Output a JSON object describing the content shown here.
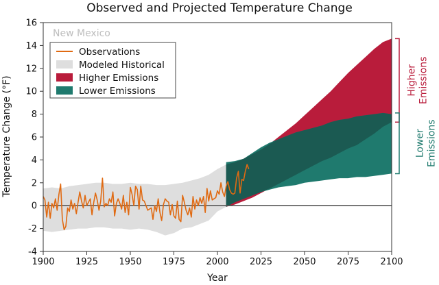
{
  "colors": {
    "observations": "#e06a12",
    "modeled_historical": "#dedede",
    "higher": "#b91c3b",
    "lower": "#1f7a6e",
    "overlap": "#1b5a52",
    "zero_line": "#555555"
  },
  "chart_data": {
    "type": "area",
    "title": "Observed and Projected Temperature Change",
    "region_label": "New Mexico",
    "xlabel": "Year",
    "ylabel": "Temperature Change (°F)",
    "xlim": [
      1900,
      2100
    ],
    "ylim": [
      -4,
      16
    ],
    "xticks": [
      1900,
      1925,
      1950,
      1975,
      2000,
      2025,
      2050,
      2075,
      2100
    ],
    "yticks": [
      -4,
      -2,
      0,
      2,
      4,
      6,
      8,
      10,
      12,
      14,
      16
    ],
    "legend": {
      "position": "top-left",
      "entries": [
        {
          "label": "Observations",
          "kind": "line",
          "color": "#e06a12"
        },
        {
          "label": "Modeled Historical",
          "kind": "patch",
          "color": "#dedede"
        },
        {
          "label": "Higher Emissions",
          "kind": "patch",
          "color": "#b91c3b"
        },
        {
          "label": "Lower Emissions",
          "kind": "patch",
          "color": "#1f7a6e"
        }
      ]
    },
    "bracket_labels": {
      "higher": [
        "Higher",
        "Emissions"
      ],
      "lower": [
        "Lower",
        "Emissions"
      ]
    },
    "modeled_historical": {
      "x": [
        1900,
        1905,
        1910,
        1915,
        1920,
        1925,
        1930,
        1935,
        1940,
        1945,
        1950,
        1955,
        1960,
        1965,
        1970,
        1975,
        1980,
        1985,
        1990,
        1995,
        2000,
        2005
      ],
      "upper": [
        1.5,
        1.6,
        1.5,
        1.7,
        1.8,
        1.9,
        2.0,
        2.0,
        1.9,
        1.9,
        2.0,
        1.9,
        1.9,
        1.8,
        1.8,
        1.9,
        2.0,
        2.2,
        2.4,
        2.7,
        3.2,
        3.6
      ],
      "lower": [
        -2.2,
        -2.3,
        -2.2,
        -2.1,
        -2.0,
        -2.0,
        -1.9,
        -1.9,
        -2.0,
        -2.0,
        -2.1,
        -2.0,
        -2.1,
        -2.3,
        -2.6,
        -2.4,
        -2.0,
        -1.9,
        -1.6,
        -1.3,
        -0.5,
        -0.1
      ]
    },
    "higher_emissions": {
      "x": [
        2005,
        2010,
        2015,
        2020,
        2025,
        2030,
        2035,
        2040,
        2045,
        2050,
        2055,
        2060,
        2065,
        2070,
        2075,
        2080,
        2085,
        2090,
        2095,
        2100
      ],
      "upper": [
        3.6,
        3.8,
        4.1,
        4.5,
        4.9,
        5.4,
        6.0,
        6.6,
        7.2,
        7.9,
        8.6,
        9.3,
        10.0,
        10.8,
        11.6,
        12.3,
        13.0,
        13.7,
        14.3,
        14.6
      ],
      "lower": [
        -0.1,
        0.1,
        0.4,
        0.7,
        1.1,
        1.5,
        1.9,
        2.3,
        2.7,
        3.1,
        3.5,
        3.9,
        4.2,
        4.6,
        5.0,
        5.3,
        5.8,
        6.3,
        6.9,
        7.3
      ]
    },
    "lower_emissions": {
      "x": [
        2005,
        2010,
        2015,
        2020,
        2025,
        2030,
        2035,
        2040,
        2045,
        2050,
        2055,
        2060,
        2065,
        2070,
        2075,
        2080,
        2085,
        2090,
        2095,
        2100
      ],
      "upper": [
        3.8,
        3.9,
        4.1,
        4.6,
        5.1,
        5.5,
        5.8,
        6.1,
        6.4,
        6.6,
        6.8,
        7.0,
        7.3,
        7.5,
        7.6,
        7.8,
        7.9,
        8.0,
        8.1,
        8.0
      ],
      "lower": [
        -0.1,
        0.3,
        0.6,
        0.9,
        1.2,
        1.4,
        1.6,
        1.7,
        1.8,
        2.0,
        2.1,
        2.2,
        2.3,
        2.4,
        2.4,
        2.5,
        2.5,
        2.6,
        2.7,
        2.8
      ]
    },
    "observations": {
      "x": [
        1900,
        1901,
        1902,
        1903,
        1904,
        1905,
        1906,
        1907,
        1908,
        1909,
        1910,
        1911,
        1912,
        1913,
        1914,
        1915,
        1916,
        1917,
        1918,
        1919,
        1920,
        1921,
        1922,
        1923,
        1924,
        1925,
        1926,
        1927,
        1928,
        1929,
        1930,
        1931,
        1932,
        1933,
        1934,
        1935,
        1936,
        1937,
        1938,
        1939,
        1940,
        1941,
        1942,
        1943,
        1944,
        1945,
        1946,
        1947,
        1948,
        1949,
        1950,
        1951,
        1952,
        1953,
        1954,
        1955,
        1956,
        1957,
        1958,
        1959,
        1960,
        1961,
        1962,
        1963,
        1964,
        1965,
        1966,
        1967,
        1968,
        1969,
        1970,
        1971,
        1972,
        1973,
        1974,
        1975,
        1976,
        1977,
        1978,
        1979,
        1980,
        1981,
        1982,
        1983,
        1984,
        1985,
        1986,
        1987,
        1988,
        1989,
        1990,
        1991,
        1992,
        1993,
        1994,
        1995,
        1996,
        1997,
        1998,
        1999,
        2000,
        2001,
        2002,
        2003,
        2004,
        2005,
        2006,
        2007,
        2008,
        2009,
        2010,
        2011,
        2012,
        2013,
        2014,
        2015,
        2016,
        2017,
        2018
      ],
      "y": [
        0.8,
        0.5,
        -1.0,
        0.3,
        -1.1,
        0.2,
        -0.2,
        0.6,
        -0.4,
        1.0,
        1.9,
        -1.2,
        -2.1,
        -1.8,
        -0.2,
        -0.5,
        0.5,
        -0.3,
        0.2,
        -0.7,
        0.3,
        1.2,
        0.4,
        -0.2,
        0.9,
        0.0,
        0.3,
        0.6,
        -0.8,
        0.3,
        1.1,
        0.5,
        -0.4,
        0.4,
        2.4,
        -0.1,
        0.2,
        0.0,
        0.6,
        0.3,
        1.2,
        -0.9,
        0.2,
        0.6,
        0.2,
        -0.3,
        0.9,
        -0.6,
        0.3,
        -0.8,
        1.6,
        1.0,
        0.0,
        1.7,
        1.4,
        -0.3,
        1.7,
        0.5,
        0.4,
        0.0,
        -0.4,
        -0.3,
        -0.2,
        -1.2,
        0.0,
        -0.5,
        0.6,
        -0.6,
        -1.3,
        0.1,
        0.6,
        0.4,
        0.3,
        -0.8,
        0.1,
        -0.9,
        -1.1,
        0.4,
        -1.2,
        -1.4,
        0.9,
        0.3,
        -0.4,
        -0.8,
        -0.2,
        -1.0,
        0.8,
        -0.3,
        0.5,
        0.0,
        0.7,
        0.2,
        0.8,
        -0.6,
        1.5,
        0.4,
        1.3,
        0.5,
        0.6,
        0.7,
        1.3,
        1.0,
        2.0,
        1.2,
        0.8,
        1.7,
        2.1,
        1.4,
        1.1,
        1.0,
        1.1,
        2.4,
        3.0,
        1.1,
        2.3,
        2.2,
        3.0,
        3.6,
        3.2
      ]
    }
  }
}
